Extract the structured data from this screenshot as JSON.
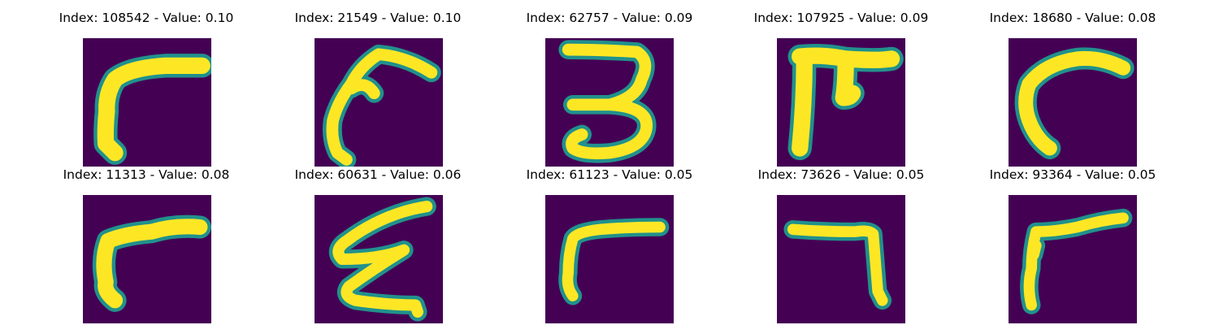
{
  "colors": {
    "background": "#440154",
    "mid": "#21918c",
    "stroke": "#fde725"
  },
  "samples": [
    {
      "index": "108542",
      "value": "0.10",
      "shape": "seven-bold"
    },
    {
      "index": "21549",
      "value": "0.10",
      "shape": "hook-curl"
    },
    {
      "index": "62757",
      "value": "0.09",
      "shape": "three"
    },
    {
      "index": "107925",
      "value": "0.09",
      "shape": "pi-like"
    },
    {
      "index": "18680",
      "value": "0.08",
      "shape": "curve"
    },
    {
      "index": "11313",
      "value": "0.08",
      "shape": "seven-bold-2"
    },
    {
      "index": "60631",
      "value": "0.06",
      "shape": "zigzag-e"
    },
    {
      "index": "61123",
      "value": "0.05",
      "shape": "seven-thin"
    },
    {
      "index": "73626",
      "value": "0.05",
      "shape": "reverse-l"
    },
    {
      "index": "93364",
      "value": "0.05",
      "shape": "seven-dotted"
    }
  ]
}
